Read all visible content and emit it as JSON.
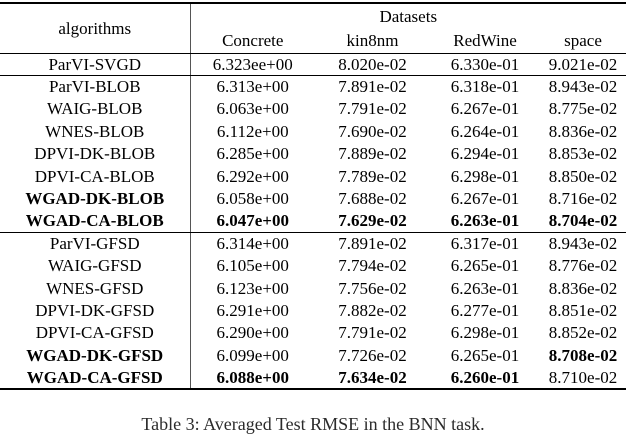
{
  "table": {
    "header": {
      "algorithms_label": "algorithms",
      "group_label": "Datasets",
      "datasets": [
        "Concrete",
        "kin8nm",
        "RedWine",
        "space"
      ]
    },
    "rows": [
      {
        "algorithm": "ParVI-SVGD",
        "bold_algorithm": false,
        "values": [
          "6.323ee+00",
          "8.020e-02",
          "6.330e-01",
          "9.021e-02"
        ],
        "bold_values": [
          false,
          false,
          false,
          false
        ],
        "rule_below": true
      },
      {
        "algorithm": "ParVI-BLOB",
        "bold_algorithm": false,
        "values": [
          "6.313e+00",
          "7.891e-02",
          "6.318e-01",
          "8.943e-02"
        ],
        "bold_values": [
          false,
          false,
          false,
          false
        ],
        "rule_below": false
      },
      {
        "algorithm": "WAIG-BLOB",
        "bold_algorithm": false,
        "values": [
          "6.063e+00",
          "7.791e-02",
          "6.267e-01",
          "8.775e-02"
        ],
        "bold_values": [
          false,
          false,
          false,
          false
        ],
        "rule_below": false
      },
      {
        "algorithm": "WNES-BLOB",
        "bold_algorithm": false,
        "values": [
          "6.112e+00",
          "7.690e-02",
          "6.264e-01",
          "8.836e-02"
        ],
        "bold_values": [
          false,
          false,
          false,
          false
        ],
        "rule_below": false
      },
      {
        "algorithm": "DPVI-DK-BLOB",
        "bold_algorithm": false,
        "values": [
          "6.285e+00",
          "7.889e-02",
          "6.294e-01",
          "8.853e-02"
        ],
        "bold_values": [
          false,
          false,
          false,
          false
        ],
        "rule_below": false
      },
      {
        "algorithm": "DPVI-CA-BLOB",
        "bold_algorithm": false,
        "values": [
          "6.292e+00",
          "7.789e-02",
          "6.298e-01",
          "8.850e-02"
        ],
        "bold_values": [
          false,
          false,
          false,
          false
        ],
        "rule_below": false
      },
      {
        "algorithm": "WGAD-DK-BLOB",
        "bold_algorithm": true,
        "values": [
          "6.058e+00",
          "7.688e-02",
          "6.267e-01",
          "8.716e-02"
        ],
        "bold_values": [
          false,
          false,
          false,
          false
        ],
        "rule_below": false
      },
      {
        "algorithm": "WGAD-CA-BLOB",
        "bold_algorithm": true,
        "values": [
          "6.047e+00",
          "7.629e-02",
          "6.263e-01",
          "8.704e-02"
        ],
        "bold_values": [
          true,
          true,
          true,
          true
        ],
        "rule_below": true
      },
      {
        "algorithm": "ParVI-GFSD",
        "bold_algorithm": false,
        "values": [
          "6.314e+00",
          "7.891e-02",
          "6.317e-01",
          "8.943e-02"
        ],
        "bold_values": [
          false,
          false,
          false,
          false
        ],
        "rule_below": false
      },
      {
        "algorithm": "WAIG-GFSD",
        "bold_algorithm": false,
        "values": [
          "6.105e+00",
          "7.794e-02",
          "6.265e-01",
          "8.776e-02"
        ],
        "bold_values": [
          false,
          false,
          false,
          false
        ],
        "rule_below": false
      },
      {
        "algorithm": "WNES-GFSD",
        "bold_algorithm": false,
        "values": [
          "6.123e+00",
          "7.756e-02",
          "6.263e-01",
          "8.836e-02"
        ],
        "bold_values": [
          false,
          false,
          false,
          false
        ],
        "rule_below": false
      },
      {
        "algorithm": "DPVI-DK-GFSD",
        "bold_algorithm": false,
        "values": [
          "6.291e+00",
          "7.882e-02",
          "6.277e-01",
          "8.851e-02"
        ],
        "bold_values": [
          false,
          false,
          false,
          false
        ],
        "rule_below": false
      },
      {
        "algorithm": "DPVI-CA-GFSD",
        "bold_algorithm": false,
        "values": [
          "6.290e+00",
          "7.791e-02",
          "6.298e-01",
          "8.852e-02"
        ],
        "bold_values": [
          false,
          false,
          false,
          false
        ],
        "rule_below": false
      },
      {
        "algorithm": "WGAD-DK-GFSD",
        "bold_algorithm": true,
        "values": [
          "6.099e+00",
          "7.726e-02",
          "6.265e-01",
          "8.708e-02"
        ],
        "bold_values": [
          false,
          false,
          false,
          true
        ],
        "rule_below": false
      },
      {
        "algorithm": "WGAD-CA-GFSD",
        "bold_algorithm": true,
        "values": [
          "6.088e+00",
          "7.634e-02",
          "6.260e-01",
          "8.710e-02"
        ],
        "bold_values": [
          true,
          true,
          true,
          false
        ],
        "rule_below": false
      }
    ]
  },
  "caption": "Table 3: Averaged Test RMSE in the BNN task."
}
